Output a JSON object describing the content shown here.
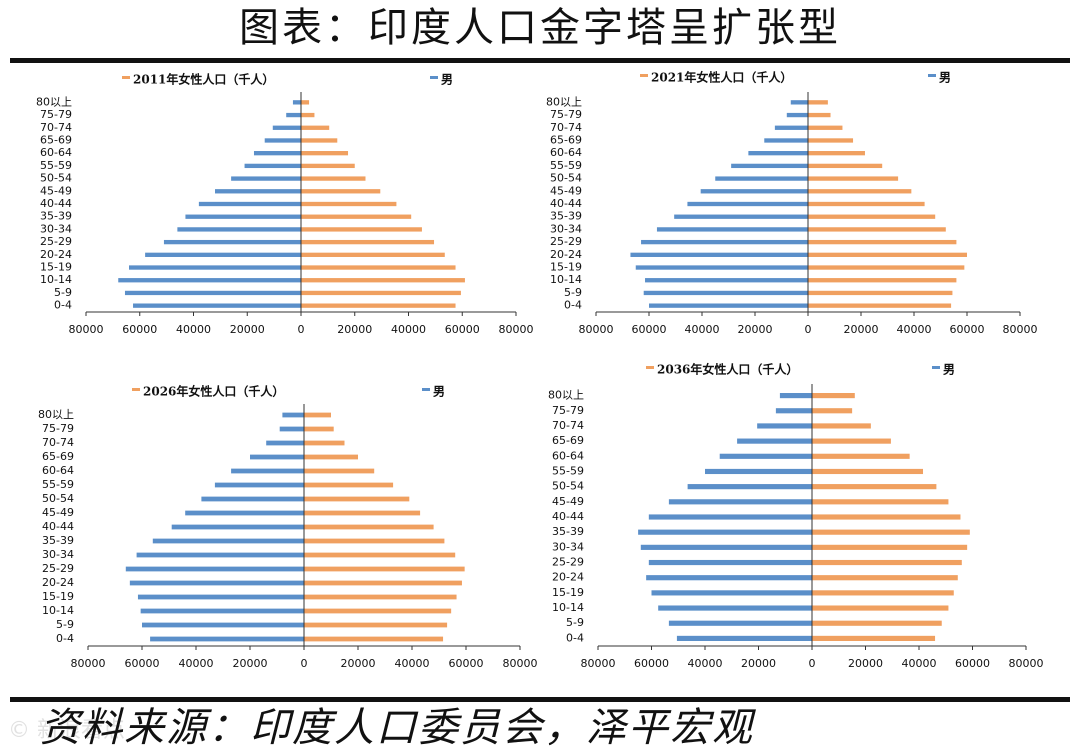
{
  "page": {
    "title": "图表：印度人口金字塔呈扩张型",
    "source": "资料来源：印度人口委员会，泽平宏观",
    "watermark": "© 新浪看点"
  },
  "colors": {
    "female": "#f0a060",
    "male": "#5b8fc9",
    "axis": "#333333",
    "text": "#111111"
  },
  "chart_data": [
    {
      "type": "bar",
      "orientation": "horizontal",
      "title": "2011年女性人口（千人）",
      "legend": [
        {
          "name": "2011年女性人口（千人）",
          "color": "#f0a060"
        },
        {
          "name": "男",
          "color": "#5b8fc9"
        }
      ],
      "legend_position": "top",
      "categories": [
        "80以上",
        "75-79",
        "70-74",
        "65-69",
        "60-64",
        "55-59",
        "50-54",
        "45-49",
        "40-44",
        "35-39",
        "30-34",
        "25-29",
        "20-24",
        "15-19",
        "10-14",
        "5-9",
        "0-4"
      ],
      "series": [
        {
          "name": "2011年女性人口（千人）",
          "values": [
            3000,
            5000,
            10500,
            13500,
            17500,
            20000,
            24000,
            29500,
            35500,
            41000,
            45000,
            49500,
            53500,
            57500,
            61000,
            59500,
            57500
          ]
        },
        {
          "name": "男",
          "values": [
            3000,
            5500,
            10500,
            13500,
            17500,
            21000,
            26000,
            32000,
            38000,
            43000,
            46000,
            51000,
            58000,
            64000,
            68000,
            65500,
            62500
          ]
        }
      ],
      "xlim": [
        -80000,
        80000
      ],
      "xticks": [
        "80000",
        "60000",
        "40000",
        "20000",
        "0",
        "20000",
        "40000",
        "60000",
        "80000"
      ]
    },
    {
      "type": "bar",
      "orientation": "horizontal",
      "title": "2021年女性人口（千人）",
      "legend": [
        {
          "name": "2021年女性人口（千人）",
          "color": "#f0a060"
        },
        {
          "name": "男",
          "color": "#5b8fc9"
        }
      ],
      "legend_position": "top",
      "categories": [
        "80以上",
        "75-79",
        "70-74",
        "65-69",
        "60-64",
        "55-59",
        "50-54",
        "45-49",
        "40-44",
        "35-39",
        "30-34",
        "25-29",
        "20-24",
        "15-19",
        "10-14",
        "5-9",
        "0-4"
      ],
      "series": [
        {
          "name": "2021年女性人口（千人）",
          "values": [
            7500,
            8500,
            13000,
            17000,
            21500,
            28000,
            34000,
            39000,
            44000,
            48000,
            52000,
            56000,
            60000,
            59000,
            56000,
            54500,
            54000
          ]
        },
        {
          "name": "男",
          "values": [
            6500,
            8000,
            12500,
            16500,
            22500,
            29000,
            35000,
            40500,
            45500,
            50500,
            57000,
            63000,
            67000,
            65000,
            61500,
            62000,
            60000
          ]
        }
      ],
      "xlim": [
        -80000,
        80000
      ],
      "xticks": [
        "80000",
        "60000",
        "40000",
        "20000",
        "0",
        "20000",
        "40000",
        "60000",
        "80000"
      ]
    },
    {
      "type": "bar",
      "orientation": "horizontal",
      "title": "2026年女性人口（千人）",
      "legend": [
        {
          "name": "2026年女性人口（千人）",
          "color": "#f0a060"
        },
        {
          "name": "男",
          "color": "#5b8fc9"
        }
      ],
      "legend_position": "top",
      "categories": [
        "80以上",
        "75-79",
        "70-74",
        "65-69",
        "60-64",
        "55-59",
        "50-54",
        "45-49",
        "40-44",
        "35-39",
        "30-34",
        "25-29",
        "20-24",
        "15-19",
        "10-14",
        "5-9",
        "0-4"
      ],
      "series": [
        {
          "name": "2026年女性人口（千人）",
          "values": [
            10000,
            11000,
            15000,
            20000,
            26000,
            33000,
            39000,
            43000,
            48000,
            52000,
            56000,
            59500,
            58500,
            56500,
            54500,
            53000,
            51500
          ]
        },
        {
          "name": "男",
          "values": [
            8000,
            9000,
            14000,
            20000,
            27000,
            33000,
            38000,
            44000,
            49000,
            56000,
            62000,
            66000,
            64500,
            61500,
            60500,
            60000,
            57000
          ]
        }
      ],
      "xlim": [
        -80000,
        80000
      ],
      "xticks": [
        "80000",
        "60000",
        "40000",
        "20000",
        "0",
        "20000",
        "40000",
        "60000",
        "80000"
      ]
    },
    {
      "type": "bar",
      "orientation": "horizontal",
      "title": "2036年女性人口（千人）",
      "legend": [
        {
          "name": "2036年女性人口（千人）",
          "color": "#f0a060"
        },
        {
          "name": "男",
          "color": "#5b8fc9"
        }
      ],
      "legend_position": "top",
      "categories": [
        "80以上",
        "75-79",
        "70-74",
        "65-69",
        "60-64",
        "55-59",
        "50-54",
        "45-49",
        "40-44",
        "35-39",
        "30-34",
        "25-29",
        "20-24",
        "15-19",
        "10-14",
        "5-9",
        "0-4"
      ],
      "series": [
        {
          "name": "2036年女性人口（千人）",
          "values": [
            16000,
            15000,
            22000,
            29500,
            36500,
            41500,
            46500,
            51000,
            55500,
            59000,
            58000,
            56000,
            54500,
            53000,
            51000,
            48500,
            46000
          ]
        },
        {
          "name": "男",
          "values": [
            12000,
            13500,
            20500,
            28000,
            34500,
            40000,
            46500,
            53500,
            61000,
            65000,
            64000,
            61000,
            62000,
            60000,
            57500,
            53500,
            50500
          ]
        }
      ],
      "xlim": [
        -80000,
        80000
      ],
      "xticks": [
        "80000",
        "60000",
        "40000",
        "20000",
        "0",
        "20000",
        "40000",
        "60000",
        "80000"
      ]
    }
  ]
}
